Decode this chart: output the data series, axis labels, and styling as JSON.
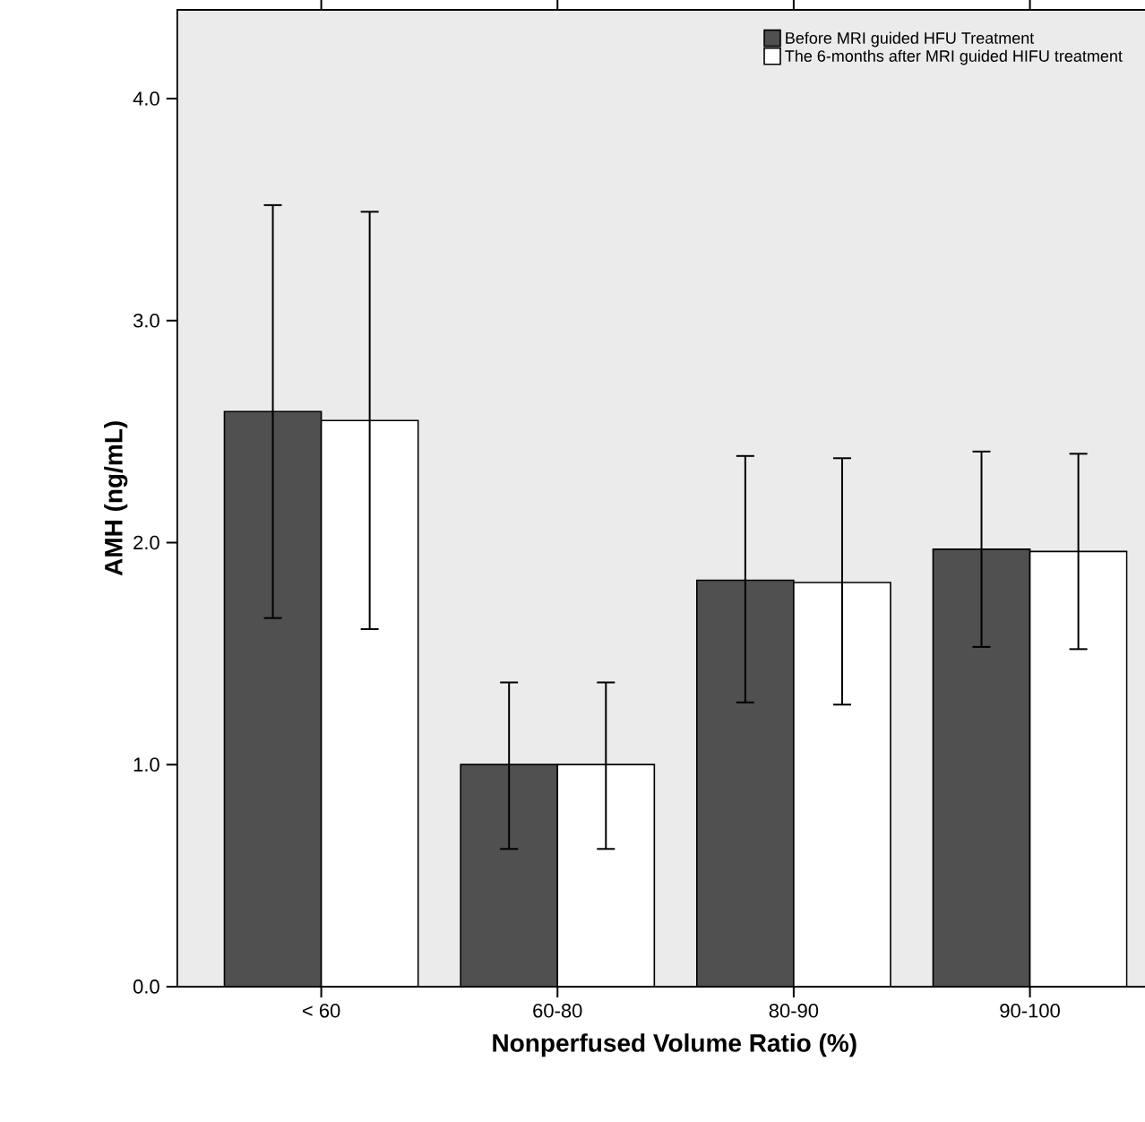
{
  "chart_data": {
    "type": "bar",
    "xlabel": "Nonperfused Volume Ratio (%)",
    "ylabel": "AMH (ng/mL)",
    "categories": [
      "< 60",
      "60-80",
      "80-90",
      "90-100"
    ],
    "series": [
      {
        "name": "Before MRI guided HFU Treatment",
        "color": "#505050",
        "values": [
          2.59,
          1.0,
          1.83,
          1.97
        ],
        "errors": [
          [
            1.66,
            3.52
          ],
          [
            0.62,
            1.37
          ],
          [
            1.28,
            2.39
          ],
          [
            1.53,
            2.41
          ]
        ]
      },
      {
        "name": "The 6-months after MRI guided HIFU treatment",
        "color": "#ffffff",
        "values": [
          2.55,
          1.0,
          1.82,
          1.96
        ],
        "errors": [
          [
            1.61,
            3.49
          ],
          [
            0.62,
            1.37
          ],
          [
            1.27,
            2.38
          ],
          [
            1.52,
            2.4
          ]
        ]
      }
    ],
    "ylim": [
      0,
      4.4
    ],
    "yticks": [
      {
        "value": 0,
        "label": "0.0"
      },
      {
        "value": 1,
        "label": "1.0"
      },
      {
        "value": 2,
        "label": "2.0"
      },
      {
        "value": 3,
        "label": "3.0"
      },
      {
        "value": 4,
        "label": "4.0"
      }
    ],
    "grid": false,
    "legend": "top right"
  }
}
